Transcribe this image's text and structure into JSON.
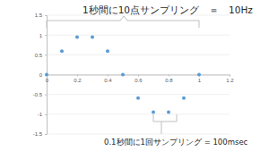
{
  "chart_data": {
    "type": "scatter",
    "x": [
      0,
      0.1,
      0.2,
      0.3,
      0.4,
      0.5,
      0.6,
      0.7,
      0.8,
      0.9,
      1.0
    ],
    "values": [
      0,
      0.59,
      0.95,
      0.95,
      0.59,
      0,
      -0.59,
      -0.95,
      -0.95,
      -0.59,
      0
    ],
    "color": "#5b9bd5",
    "marker": "circle",
    "xlim": [
      0,
      1.2
    ],
    "xticks": [
      0,
      0.2,
      0.4,
      0.6,
      0.8,
      1,
      1.2
    ],
    "ylim": [
      -1.5,
      1.5
    ],
    "yticks": [
      -1.5,
      -1,
      -0.5,
      0,
      0.5,
      1,
      1.5
    ],
    "grid": true,
    "annotations": [
      "1秒間に10点サンプリング　＝　10Hz",
      "0.1秒間に1回サンプリング = 100msec"
    ]
  }
}
